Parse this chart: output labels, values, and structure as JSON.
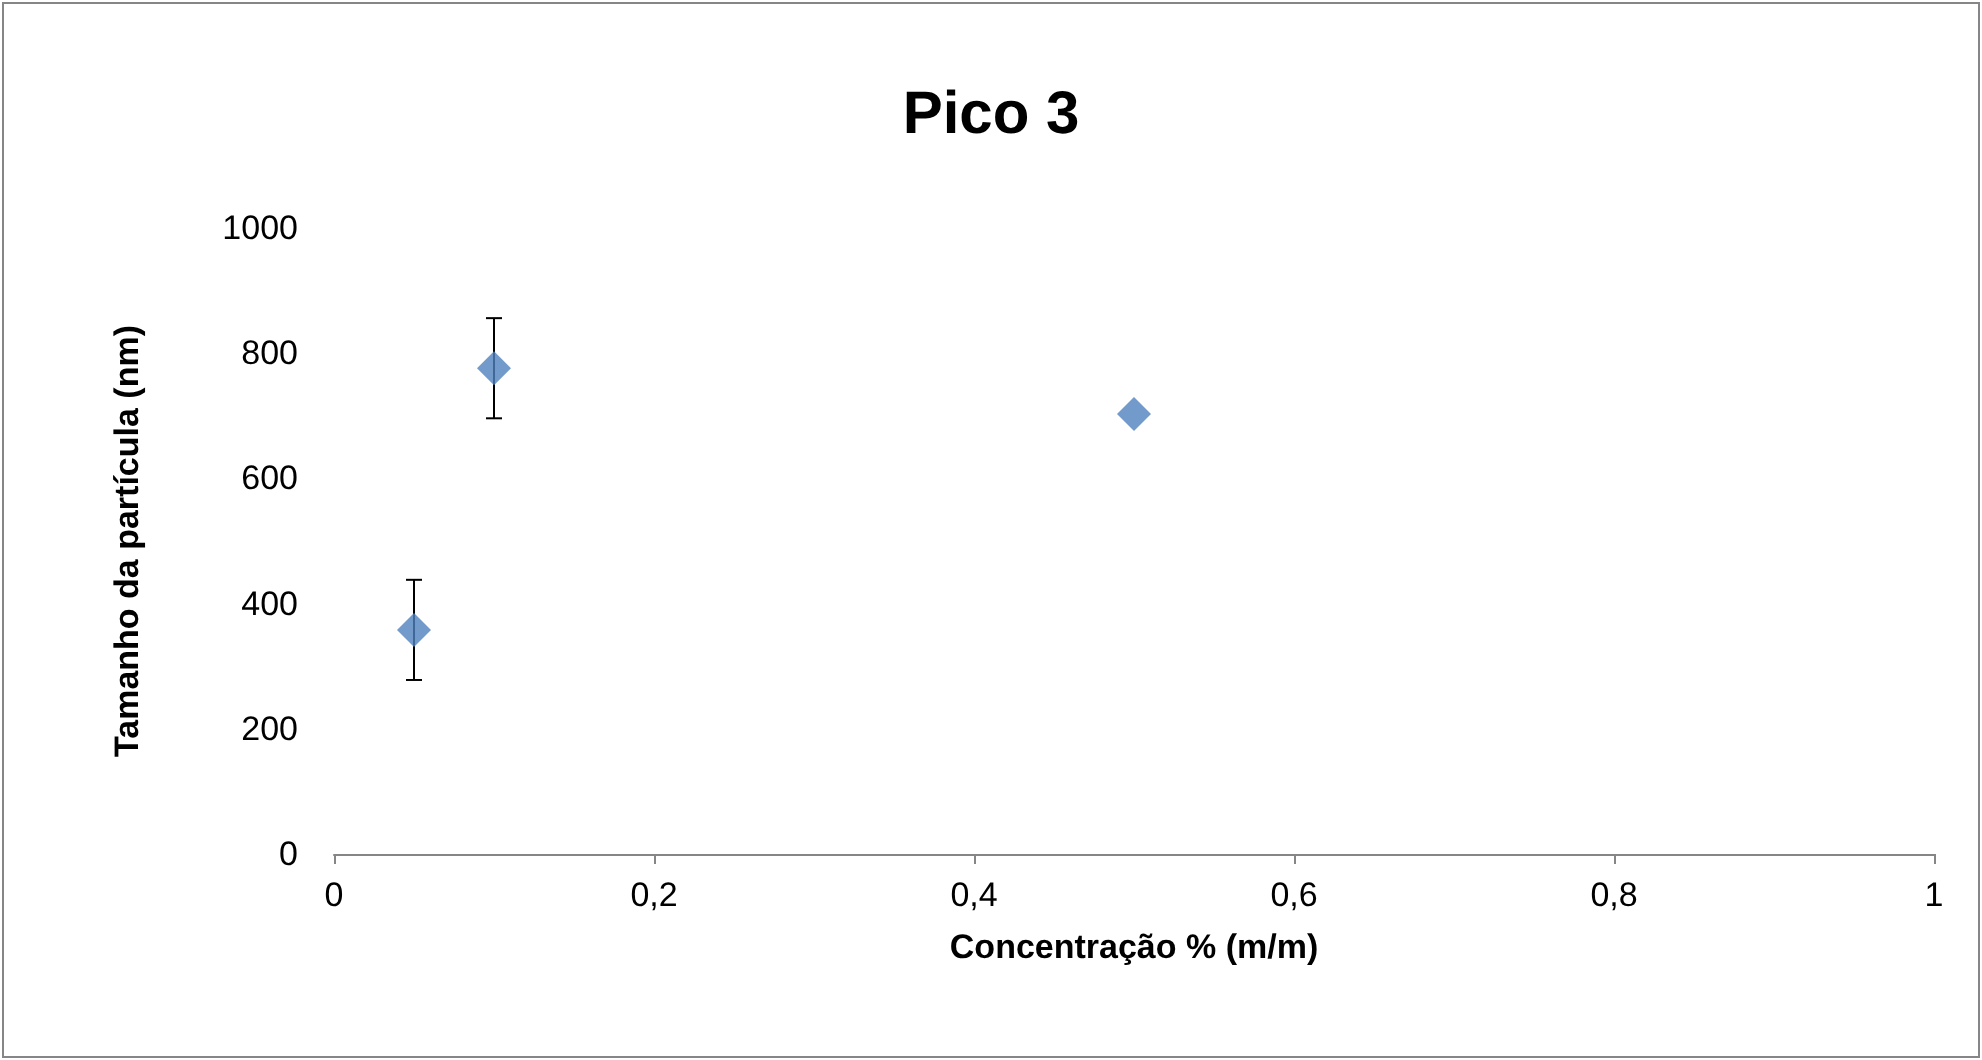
{
  "chart_data": {
    "type": "scatter",
    "title": "Pico 3",
    "xlabel": "Concentração % (m/m)",
    "ylabel": "Tamanho da partícula (nm)",
    "x": [
      0.05,
      0.1,
      0.5
    ],
    "series": [
      {
        "color": "#4f81bd",
        "values": [
          358,
          776,
          703
        ],
        "errors": [
          80,
          80,
          null
        ]
      }
    ],
    "marker": "diamond",
    "grid": false,
    "xlim": [
      0,
      1
    ],
    "xticks": [
      0,
      {
        "value": 0.2,
        "label": "0,2"
      },
      {
        "value": 0.4,
        "label": "0,4"
      },
      {
        "value": 0.6,
        "label": "0,6"
      },
      {
        "value": 0.8,
        "label": "0,8"
      },
      1
    ],
    "ylim": [
      0,
      1000
    ],
    "yticks": [
      0,
      200,
      400,
      600,
      800,
      1000
    ]
  }
}
